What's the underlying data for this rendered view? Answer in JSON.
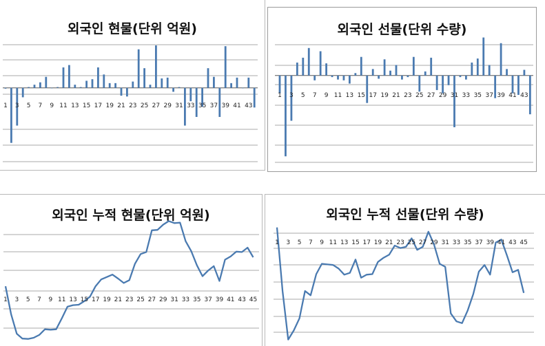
{
  "chart_data": [
    {
      "type": "bar",
      "title": "외국인 현물(단위 억원)",
      "categories": [
        "1",
        "2",
        "3",
        "4",
        "5",
        "6",
        "7",
        "8",
        "9",
        "10",
        "11",
        "12",
        "13",
        "14",
        "15",
        "16",
        "17",
        "18",
        "19",
        "20",
        "21",
        "22",
        "23",
        "24",
        "25",
        "26",
        "27",
        "28",
        "29",
        "30",
        "31",
        "32",
        "33",
        "34",
        "35",
        "36",
        "37",
        "38",
        "39",
        "40",
        "41",
        "42",
        "43",
        "44"
      ],
      "tick_labels": [
        "1",
        "3",
        "5",
        "7",
        "9",
        "11",
        "13",
        "15",
        "17",
        "19",
        "21",
        "23",
        "25",
        "27",
        "29",
        "31",
        "33",
        "35",
        "37",
        "39",
        "41",
        "43"
      ],
      "values": [
        -1,
        -70,
        -48,
        -12,
        1,
        4,
        7,
        14,
        0,
        1,
        26,
        29,
        4,
        1,
        9,
        11,
        26,
        17,
        6,
        6,
        -10,
        -11,
        8,
        49,
        25,
        4,
        54,
        12,
        13,
        -5,
        1,
        -48,
        -17,
        -37,
        -24,
        25,
        14,
        -37,
        53,
        6,
        13,
        0,
        13,
        -25
      ],
      "ylim": [
        -100,
        75
      ],
      "grid": true
    },
    {
      "type": "bar",
      "title": "외국인 선물(단위 수량)",
      "categories": [
        "1",
        "2",
        "3",
        "4",
        "5",
        "6",
        "7",
        "8",
        "9",
        "10",
        "11",
        "12",
        "13",
        "14",
        "15",
        "16",
        "17",
        "18",
        "19",
        "20",
        "21",
        "22",
        "23",
        "24",
        "25",
        "26",
        "27",
        "28",
        "29",
        "30",
        "31",
        "32",
        "33",
        "34",
        "35",
        "36",
        "37",
        "38",
        "39",
        "40",
        "41",
        "42",
        "43",
        "44"
      ],
      "tick_labels": [
        "1",
        "3",
        "5",
        "7",
        "9",
        "11",
        "13",
        "15",
        "17",
        "19",
        "21",
        "23",
        "25",
        "27",
        "29",
        "31",
        "33",
        "35",
        "37",
        "39",
        "41",
        "43"
      ],
      "values": [
        -22,
        -100,
        -56,
        16,
        22,
        34,
        -6,
        30,
        15,
        -2,
        -5,
        -6,
        -10,
        3,
        23,
        -34,
        8,
        -4,
        20,
        6,
        13,
        -5,
        -2,
        23,
        -20,
        5,
        22,
        -18,
        -22,
        -12,
        -64,
        -2,
        -5,
        16,
        21,
        47,
        13,
        -28,
        40,
        8,
        -22,
        -24,
        7,
        -48
      ],
      "ylim": [
        -110,
        50
      ],
      "grid": true
    },
    {
      "type": "line",
      "title": "외국인  누적 현물(단위 억원)",
      "x": [
        1,
        2,
        3,
        4,
        5,
        6,
        7,
        8,
        9,
        10,
        11,
        12,
        13,
        14,
        15,
        16,
        17,
        18,
        19,
        20,
        21,
        22,
        23,
        24,
        25,
        26,
        27,
        28,
        29,
        30,
        31,
        32,
        33,
        34,
        35,
        36,
        37,
        38,
        39,
        40,
        41,
        42,
        43,
        44,
        45
      ],
      "tick_labels": [
        "1",
        "3",
        "5",
        "7",
        "9",
        "11",
        "13",
        "15",
        "17",
        "19",
        "21",
        "23",
        "25",
        "27",
        "29",
        "31",
        "33",
        "35",
        "37",
        "39",
        "41",
        "43",
        "45"
      ],
      "values": [
        0,
        -70,
        -118,
        -130,
        -131,
        -128,
        -121,
        -107,
        -108,
        -107,
        -80,
        -51,
        -47,
        -46,
        -37,
        -26,
        0,
        17,
        23,
        29,
        19,
        8,
        15,
        56,
        80,
        85,
        139,
        140,
        153,
        162,
        157,
        158,
        112,
        87,
        52,
        25,
        39,
        50,
        13,
        66,
        74,
        86,
        85,
        96,
        72
      ],
      "ylim": [
        -140,
        190
      ],
      "grid": true
    },
    {
      "type": "line",
      "title": "외국인 누적 선물(단위 수량)",
      "x": [
        1,
        2,
        3,
        4,
        5,
        6,
        7,
        8,
        9,
        10,
        11,
        12,
        13,
        14,
        15,
        16,
        17,
        18,
        19,
        20,
        21,
        22,
        23,
        24,
        25,
        26,
        27,
        28,
        29,
        30,
        31,
        32,
        33,
        34,
        35,
        36,
        37,
        38,
        39,
        40,
        41,
        42,
        43,
        44,
        45
      ],
      "tick_labels": [
        "1",
        "3",
        "5",
        "7",
        "9",
        "11",
        "13",
        "15",
        "17",
        "19",
        "21",
        "23",
        "25",
        "27",
        "29",
        "31",
        "33",
        "35",
        "37",
        "39",
        "41",
        "43",
        "45"
      ],
      "values": [
        80,
        -25,
        -105,
        -90,
        -70,
        -25,
        -32,
        3,
        20,
        19,
        18,
        12,
        2,
        5,
        27,
        -3,
        2,
        3,
        23,
        30,
        35,
        50,
        46,
        48,
        62,
        43,
        48,
        73,
        52,
        20,
        15,
        -62,
        -75,
        -78,
        -57,
        -30,
        7,
        18,
        2,
        55,
        60,
        34,
        6,
        10,
        -28
      ],
      "ylim": [
        -110,
        100
      ],
      "grid": true
    }
  ]
}
